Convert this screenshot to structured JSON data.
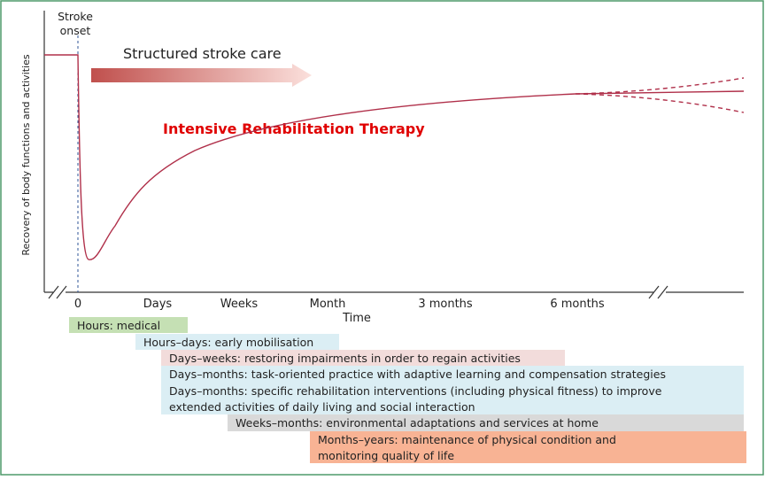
{
  "header": {
    "stroke_onset": [
      "Stroke",
      "onset"
    ],
    "arrow_label": "Structured stroke care",
    "highlight": "Intensive Rehabilitation Therapy"
  },
  "axes": {
    "y_label": "Recovery of body functions and activities",
    "x_label": "Time",
    "x_ticks": [
      "0",
      "Days",
      "Weeks",
      "Month",
      "3 months",
      "6 months"
    ]
  },
  "phases": [
    {
      "lines": [
        "Hours: medical"
      ]
    },
    {
      "lines": [
        "Hours–days: early mobilisation"
      ]
    },
    {
      "lines": [
        "Days–weeks: restoring impairments in order to regain activities"
      ]
    },
    {
      "lines": [
        "Days–months: task-oriented practice with adaptive learning and compensation strategies"
      ]
    },
    {
      "lines": [
        "Days–months: specific rehabilitation interventions (including physical fitness) to improve",
        "extended activities of daily living and social interaction"
      ]
    },
    {
      "lines": [
        "Weeks–months: environmental adaptations and services at home"
      ]
    },
    {
      "lines": [
        "Months–years: maintenance of physical condition and",
        "monitoring quality of life"
      ]
    }
  ]
}
